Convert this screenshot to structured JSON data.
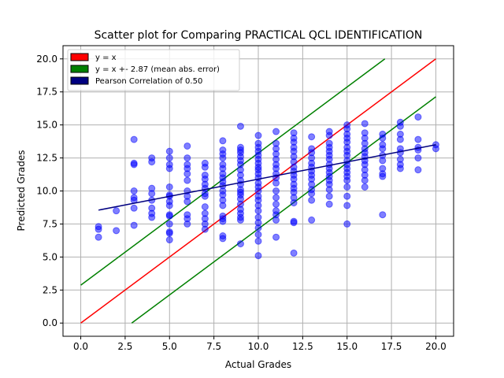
{
  "chart_data": {
    "type": "scatter",
    "title": "Scatter plot for Comparing PRACTICAL QCL IDENTIFICATION",
    "xlabel": "Actual Grades",
    "ylabel": "Predicted Grades",
    "xlim": [
      -1,
      21
    ],
    "ylim": [
      -1,
      21
    ],
    "xticks": [
      "0.0",
      "2.5",
      "5.0",
      "7.5",
      "10.0",
      "12.5",
      "15.0",
      "17.5",
      "20.0"
    ],
    "yticks": [
      "0.0",
      "2.5",
      "5.0",
      "7.5",
      "10.0",
      "12.5",
      "15.0",
      "17.5",
      "20.0"
    ],
    "grid": true,
    "legend_position": "top-left",
    "colors": {
      "points": "#0000ff",
      "identity": "#ff0000",
      "error_band": "#008000",
      "regression": "#000080"
    },
    "legend": [
      {
        "label": "y = x",
        "color": "#ff0000"
      },
      {
        "label": "y = x +- 2.87 (mean abs. error)",
        "color": "#008000"
      },
      {
        "label": "Pearson Correlation of 0.50",
        "color": "#000080"
      }
    ],
    "lines": {
      "identity": {
        "x": [
          0,
          20
        ],
        "y": [
          0,
          20
        ]
      },
      "upper_band": {
        "x": [
          0,
          17.13
        ],
        "y": [
          2.87,
          20
        ]
      },
      "lower_band": {
        "x": [
          2.87,
          20
        ],
        "y": [
          0,
          17.13
        ]
      },
      "regression": {
        "x": [
          1,
          20
        ],
        "y": [
          8.55,
          13.5
        ]
      }
    },
    "series": [
      {
        "values": [
          [
            1,
            7.3
          ],
          [
            1,
            7.1
          ],
          [
            1,
            6.5
          ],
          [
            2,
            8.5
          ],
          [
            2,
            7.0
          ],
          [
            3,
            13.9
          ],
          [
            3,
            12.1
          ],
          [
            3,
            12.0
          ],
          [
            3,
            10.0
          ],
          [
            3,
            9.5
          ],
          [
            3,
            9.3
          ],
          [
            3,
            8.7
          ],
          [
            3,
            7.4
          ],
          [
            4,
            12.5
          ],
          [
            4,
            12.2
          ],
          [
            4,
            10.2
          ],
          [
            4,
            9.8
          ],
          [
            4,
            9.3
          ],
          [
            4,
            8.7
          ],
          [
            4,
            8.3
          ],
          [
            4,
            8.0
          ],
          [
            5,
            13.0
          ],
          [
            5,
            12.5
          ],
          [
            5,
            12.0
          ],
          [
            5,
            11.7
          ],
          [
            5,
            10.3
          ],
          [
            5,
            9.7
          ],
          [
            5,
            9.6
          ],
          [
            5,
            9.2
          ],
          [
            5,
            8.9
          ],
          [
            5,
            8.2
          ],
          [
            5,
            8.1
          ],
          [
            5,
            7.5
          ],
          [
            5,
            6.9
          ],
          [
            5,
            6.8
          ],
          [
            5,
            6.3
          ],
          [
            6,
            13.4
          ],
          [
            6,
            12.5
          ],
          [
            6,
            12.0
          ],
          [
            6,
            11.7
          ],
          [
            6,
            11.3
          ],
          [
            6,
            10.8
          ],
          [
            6,
            10.0
          ],
          [
            6,
            9.6
          ],
          [
            6,
            9.2
          ],
          [
            6,
            8.2
          ],
          [
            6,
            7.9
          ],
          [
            6,
            7.5
          ],
          [
            7,
            12.1
          ],
          [
            7,
            11.8
          ],
          [
            7,
            11.2
          ],
          [
            7,
            10.9
          ],
          [
            7,
            10.5
          ],
          [
            7,
            10.2
          ],
          [
            7,
            9.8
          ],
          [
            7,
            9.6
          ],
          [
            7,
            8.8
          ],
          [
            7,
            8.3
          ],
          [
            7,
            7.9
          ],
          [
            7,
            7.5
          ],
          [
            7,
            7.1
          ],
          [
            8,
            13.8
          ],
          [
            8,
            13.1
          ],
          [
            8,
            12.8
          ],
          [
            8,
            12.5
          ],
          [
            8,
            12.0
          ],
          [
            8,
            11.7
          ],
          [
            8,
            11.3
          ],
          [
            8,
            11.0
          ],
          [
            8,
            10.7
          ],
          [
            8,
            10.4
          ],
          [
            8,
            10.0
          ],
          [
            8,
            9.7
          ],
          [
            8,
            9.3
          ],
          [
            8,
            8.9
          ],
          [
            8,
            8.1
          ],
          [
            8,
            7.9
          ],
          [
            8,
            7.7
          ],
          [
            8,
            6.6
          ],
          [
            8,
            6.4
          ],
          [
            9,
            14.9
          ],
          [
            9,
            13.3
          ],
          [
            9,
            13.1
          ],
          [
            9,
            12.9
          ],
          [
            9,
            12.6
          ],
          [
            9,
            12.3
          ],
          [
            9,
            12.0
          ],
          [
            9,
            11.6
          ],
          [
            9,
            11.2
          ],
          [
            9,
            10.8
          ],
          [
            9,
            10.5
          ],
          [
            9,
            10.1
          ],
          [
            9,
            9.9
          ],
          [
            9,
            9.7
          ],
          [
            9,
            9.4
          ],
          [
            9,
            9.0
          ],
          [
            9,
            8.6
          ],
          [
            9,
            8.3
          ],
          [
            9,
            8.0
          ],
          [
            9,
            7.8
          ],
          [
            9,
            6.0
          ],
          [
            10,
            14.2
          ],
          [
            10,
            13.6
          ],
          [
            10,
            13.3
          ],
          [
            10,
            13.0
          ],
          [
            10,
            12.7
          ],
          [
            10,
            12.4
          ],
          [
            10,
            12.1
          ],
          [
            10,
            11.8
          ],
          [
            10,
            11.6
          ],
          [
            10,
            11.3
          ],
          [
            10,
            11.0
          ],
          [
            10,
            10.6
          ],
          [
            10,
            10.3
          ],
          [
            10,
            10.0
          ],
          [
            10,
            9.6
          ],
          [
            10,
            9.3
          ],
          [
            10,
            8.9
          ],
          [
            10,
            8.5
          ],
          [
            10,
            8.0
          ],
          [
            10,
            7.6
          ],
          [
            10,
            7.2
          ],
          [
            10,
            6.7
          ],
          [
            10,
            6.2
          ],
          [
            10,
            5.1
          ],
          [
            11,
            14.5
          ],
          [
            11,
            13.6
          ],
          [
            11,
            13.2
          ],
          [
            11,
            12.8
          ],
          [
            11,
            12.4
          ],
          [
            11,
            12.0
          ],
          [
            11,
            11.7
          ],
          [
            11,
            11.3
          ],
          [
            11,
            11.0
          ],
          [
            11,
            10.6
          ],
          [
            11,
            10.0
          ],
          [
            11,
            9.5
          ],
          [
            11,
            9.0
          ],
          [
            11,
            8.5
          ],
          [
            11,
            8.2
          ],
          [
            11,
            7.8
          ],
          [
            11,
            6.5
          ],
          [
            12,
            14.4
          ],
          [
            12,
            14.0
          ],
          [
            12,
            13.7
          ],
          [
            12,
            13.3
          ],
          [
            12,
            13.0
          ],
          [
            12,
            12.6
          ],
          [
            12,
            12.2
          ],
          [
            12,
            11.8
          ],
          [
            12,
            11.5
          ],
          [
            12,
            11.2
          ],
          [
            12,
            10.9
          ],
          [
            12,
            10.5
          ],
          [
            12,
            10.2
          ],
          [
            12,
            9.9
          ],
          [
            12,
            9.5
          ],
          [
            12,
            9.1
          ],
          [
            12,
            7.7
          ],
          [
            12,
            7.6
          ],
          [
            12,
            5.3
          ],
          [
            13,
            14.1
          ],
          [
            13,
            13.2
          ],
          [
            13,
            12.9
          ],
          [
            13,
            12.5
          ],
          [
            13,
            12.1
          ],
          [
            13,
            11.8
          ],
          [
            13,
            11.5
          ],
          [
            13,
            11.2
          ],
          [
            13,
            10.9
          ],
          [
            13,
            10.5
          ],
          [
            13,
            10.1
          ],
          [
            13,
            9.8
          ],
          [
            13,
            9.3
          ],
          [
            13,
            7.8
          ],
          [
            14,
            14.5
          ],
          [
            14,
            14.2
          ],
          [
            14,
            13.6
          ],
          [
            14,
            13.3
          ],
          [
            14,
            13.0
          ],
          [
            14,
            12.7
          ],
          [
            14,
            12.4
          ],
          [
            14,
            12.0
          ],
          [
            14,
            11.7
          ],
          [
            14,
            11.4
          ],
          [
            14,
            11.1
          ],
          [
            14,
            10.8
          ],
          [
            14,
            10.5
          ],
          [
            14,
            10.1
          ],
          [
            14,
            9.6
          ],
          [
            14,
            9.0
          ],
          [
            15,
            15.0
          ],
          [
            15,
            14.7
          ],
          [
            15,
            14.3
          ],
          [
            15,
            14.0
          ],
          [
            15,
            13.7
          ],
          [
            15,
            13.3
          ],
          [
            15,
            13.0
          ],
          [
            15,
            12.7
          ],
          [
            15,
            12.3
          ],
          [
            15,
            12.0
          ],
          [
            15,
            11.7
          ],
          [
            15,
            11.4
          ],
          [
            15,
            11.1
          ],
          [
            15,
            10.8
          ],
          [
            15,
            10.3
          ],
          [
            15,
            9.6
          ],
          [
            15,
            8.9
          ],
          [
            15,
            7.5
          ],
          [
            16,
            15.1
          ],
          [
            16,
            14.4
          ],
          [
            16,
            14.0
          ],
          [
            16,
            13.6
          ],
          [
            16,
            13.2
          ],
          [
            16,
            12.9
          ],
          [
            16,
            12.6
          ],
          [
            16,
            12.3
          ],
          [
            16,
            12.0
          ],
          [
            16,
            11.6
          ],
          [
            16,
            11.2
          ],
          [
            16,
            10.8
          ],
          [
            16,
            10.3
          ],
          [
            17,
            14.3
          ],
          [
            17,
            14.0
          ],
          [
            17,
            13.5
          ],
          [
            17,
            13.2
          ],
          [
            17,
            12.7
          ],
          [
            17,
            12.3
          ],
          [
            17,
            11.7
          ],
          [
            17,
            11.3
          ],
          [
            17,
            11.1
          ],
          [
            17,
            8.2
          ],
          [
            18,
            15.2
          ],
          [
            18,
            14.9
          ],
          [
            18,
            14.3
          ],
          [
            18,
            13.9
          ],
          [
            18,
            13.2
          ],
          [
            18,
            12.9
          ],
          [
            18,
            12.4
          ],
          [
            18,
            12.0
          ],
          [
            18,
            11.7
          ],
          [
            19,
            15.6
          ],
          [
            19,
            13.9
          ],
          [
            19,
            13.3
          ],
          [
            19,
            13.1
          ],
          [
            19,
            12.5
          ],
          [
            19,
            11.6
          ],
          [
            20,
            13.5
          ],
          [
            20,
            13.2
          ]
        ]
      }
    ]
  }
}
